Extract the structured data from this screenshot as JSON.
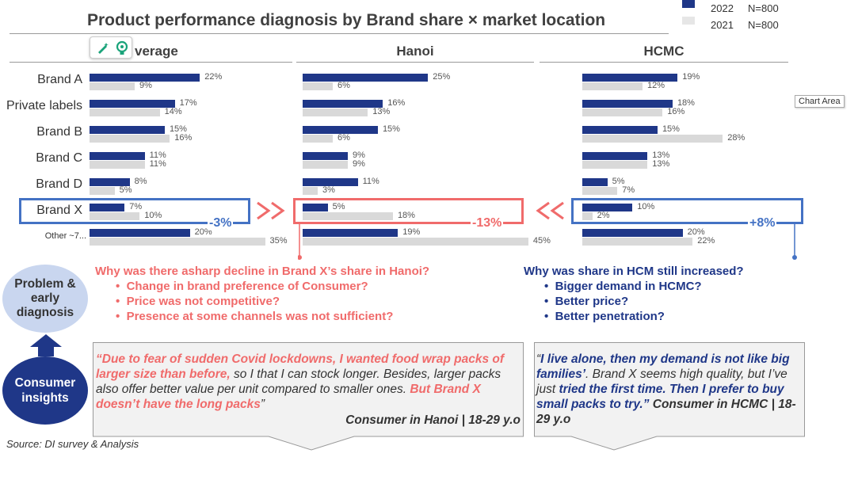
{
  "title": "Product performance diagnosis by Brand share × market location",
  "legend": [
    {
      "year": "2022",
      "n": "N=800",
      "color": "#1f3788"
    },
    {
      "year": "2021",
      "n": "N=800",
      "color": "#d9d9d9"
    }
  ],
  "chart_area_tooltip": "Chart Area",
  "chart_data": {
    "type": "bar",
    "orientation": "horizontal",
    "categories": [
      "Brand A",
      "Private labels",
      "Brand B",
      "Brand C",
      "Brand D",
      "Brand X",
      "Other ~7..."
    ],
    "panels": [
      {
        "name": "Average",
        "display_name": "verage",
        "series": [
          {
            "name": "2022",
            "values": [
              22,
              17,
              15,
              11,
              8,
              7,
              20
            ],
            "labels": [
              "22%",
              "17%",
              "15%",
              "11%",
              "8%",
              "7%",
              "20%"
            ]
          },
          {
            "name": "2021",
            "values": [
              9,
              14,
              16,
              11,
              5,
              10,
              35
            ],
            "labels": [
              "9%",
              "14%",
              "16%",
              "11%",
              "5%",
              "10%",
              "35%"
            ]
          }
        ]
      },
      {
        "name": "Hanoi",
        "display_name": "Hanoi",
        "series": [
          {
            "name": "2022",
            "values": [
              25,
              16,
              15,
              9,
              11,
              5,
              19
            ],
            "labels": [
              "25%",
              "16%",
              "15%",
              "9%",
              "11%",
              "5%",
              "19%"
            ]
          },
          {
            "name": "2021",
            "values": [
              6,
              13,
              6,
              9,
              3,
              18,
              45
            ],
            "labels": [
              "6%",
              "13%",
              "6%",
              "9%",
              "3%",
              "18%",
              "45%"
            ]
          }
        ]
      },
      {
        "name": "HCMC",
        "display_name": "HCMC",
        "series": [
          {
            "name": "2022",
            "values": [
              19,
              18,
              15,
              13,
              5,
              10,
              20
            ],
            "labels": [
              "19%",
              "18%",
              "15%",
              "13%",
              "5%",
              "10%",
              "20%"
            ]
          },
          {
            "name": "2021",
            "values": [
              12,
              16,
              28,
              13,
              7,
              2,
              22
            ],
            "labels": [
              "12%",
              "16%",
              "28%",
              "13%",
              "7%",
              "2%",
              "22%"
            ]
          }
        ]
      }
    ],
    "highlight_category": "Brand X",
    "changes": {
      "Average": "-3%",
      "Hanoi": "-13%",
      "HCMC": "+8%"
    }
  },
  "hanoi_question": {
    "title": "Why was there asharp decline in Brand X’s share in Hanoi?",
    "bullets": [
      "Change in brand preference of Consumer?",
      "Price was not competitive?",
      "Presence at some channels was not sufficient?"
    ]
  },
  "hcmc_question": {
    "title": "Why was share in HCM still increased?",
    "bullets": [
      "Bigger demand in HCMC?",
      "Better price?",
      "Better penetration?"
    ]
  },
  "problem_bubble": "Problem & early diagnosis",
  "insights_bubble": "Consumer insights",
  "quote_hanoi": {
    "open": "“",
    "hl1": "Due to fear of sudden Covid lockdowns, I wanted food wrap packs of larger size than before,",
    "plain": " so I that I can stock longer. Besides, larger packs also offer better value per unit compared to smaller ones. ",
    "hl2": "But Brand X doesn’t have the long packs",
    "close": "”",
    "signature": "Consumer in Hanoi | 18-29 y.o"
  },
  "quote_hcmc": {
    "open": "“",
    "hl1": "I live alone, then my demand is not like big families’",
    "plain": ". Brand X seems high quality, but I’ve just ",
    "hl2": "tried the first time. Then I prefer to buy small packs to try.",
    "close": "”",
    "signature": "Consumer in HCMC | 18-29 y.o"
  },
  "source": "Source: DI survey & Analysis"
}
